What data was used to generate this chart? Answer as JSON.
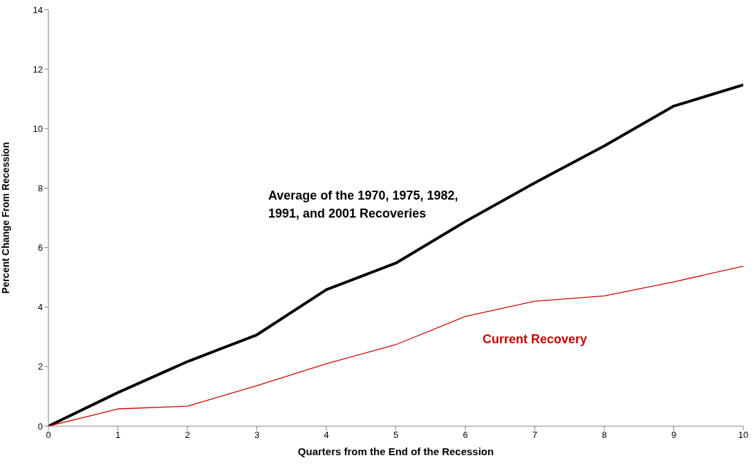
{
  "chart_data": {
    "type": "line",
    "xlabel": "Quarters from the End of the Recession",
    "ylabel": "Percent Change From Recession",
    "x": [
      0,
      1,
      2,
      3,
      4,
      5,
      6,
      7,
      8,
      9,
      10
    ],
    "series": [
      {
        "name": "Average of the 1970, 1975, 1982, 1991, and 2001 Recoveries",
        "color": "#000000",
        "values": [
          0,
          1.13,
          2.17,
          3.07,
          4.59,
          5.48,
          6.88,
          8.18,
          9.42,
          10.76,
          11.47
        ]
      },
      {
        "name": "Current Recovery",
        "color": "#cc0000",
        "values": [
          0,
          0.58,
          0.67,
          1.36,
          2.1,
          2.74,
          3.69,
          4.2,
          4.38,
          4.85,
          5.38
        ]
      }
    ],
    "xlim": [
      0,
      10
    ],
    "xticks": [
      0,
      1,
      2,
      3,
      4,
      5,
      6,
      7,
      8,
      9,
      10
    ],
    "ylim": [
      0,
      14
    ],
    "yticks": [
      0,
      2,
      4,
      6,
      8,
      10,
      12,
      14
    ],
    "grid": false,
    "marker": "none",
    "line_style": "solid"
  }
}
